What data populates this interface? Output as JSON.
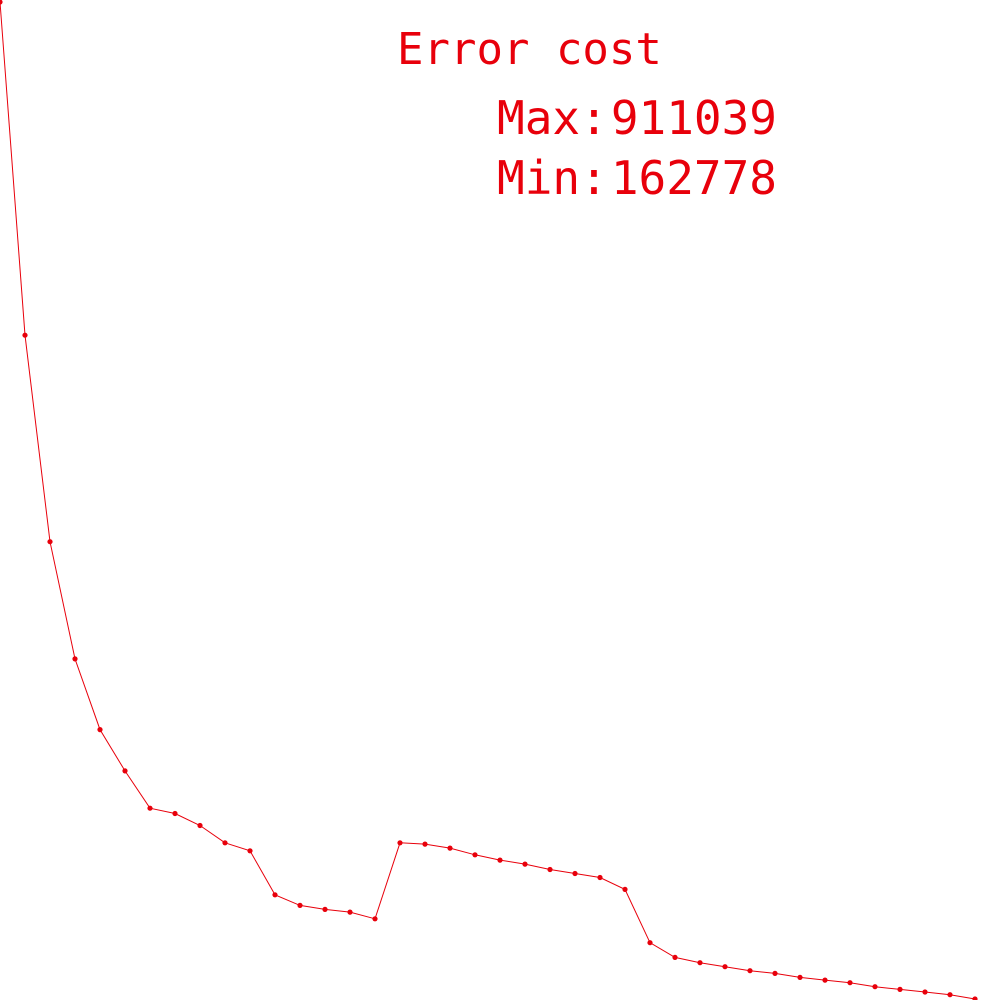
{
  "chart_data": {
    "type": "line",
    "title": "Error cost",
    "stats": {
      "max_label": "Max:",
      "max_value": "911039",
      "min_label": "Min:",
      "min_value": "162778"
    },
    "color": "#e8000b",
    "markers": true,
    "grid": false,
    "xlabel": "",
    "ylabel": "",
    "ylim": [
      162778,
      911039
    ],
    "x": [
      0,
      1,
      2,
      3,
      4,
      5,
      6,
      7,
      8,
      9,
      10,
      11,
      12,
      13,
      14,
      15,
      16,
      17,
      18,
      19,
      20,
      21,
      22,
      23,
      24,
      25,
      26,
      27,
      28,
      29,
      30,
      31,
      32,
      33,
      34,
      35,
      36,
      37,
      38,
      39
    ],
    "values": [
      911039,
      661000,
      506000,
      418000,
      365000,
      334000,
      306000,
      302000,
      293000,
      280000,
      274000,
      241000,
      233000,
      230000,
      228000,
      223000,
      280000,
      279000,
      276000,
      271000,
      267000,
      264000,
      260000,
      257000,
      254000,
      245000,
      205000,
      194000,
      190000,
      187000,
      184000,
      182000,
      179000,
      177000,
      175000,
      172000,
      170000,
      168000,
      166000,
      162778
    ]
  }
}
